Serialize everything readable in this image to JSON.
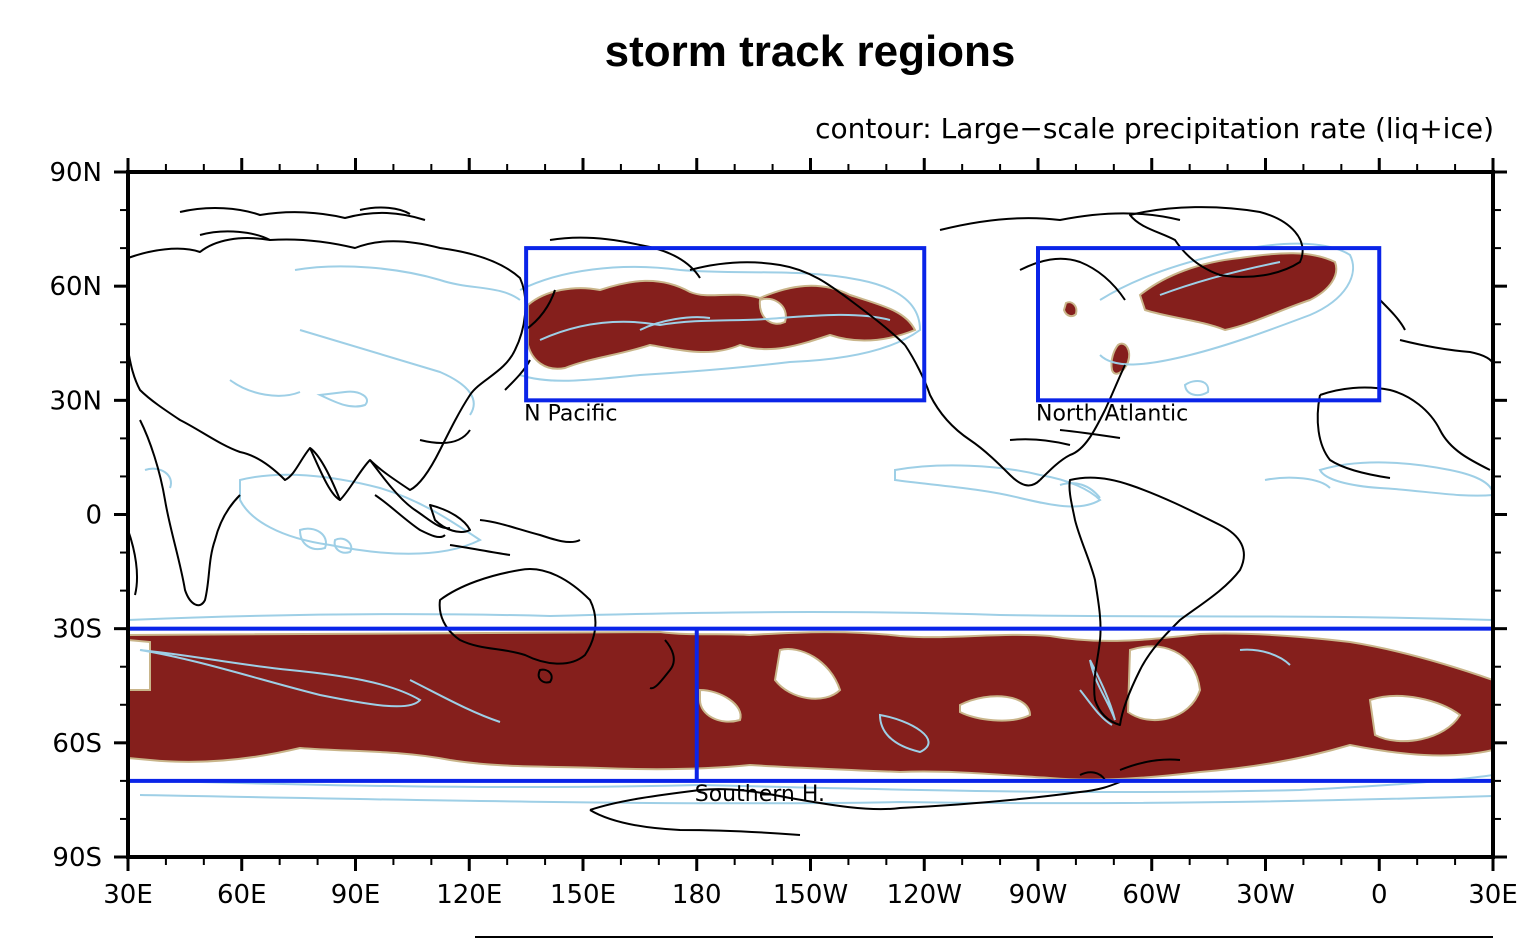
{
  "title": "storm track regions",
  "subtitle": "contour: Large−scale precipitation rate (liq+ice)",
  "colors": {
    "shading": "#851f1c",
    "contours": "#9ecfe6",
    "region_boxes": "#0a24e8",
    "coastlines": "#000000"
  },
  "axes": {
    "x_ticks": [
      {
        "lon": 30,
        "label": "30E"
      },
      {
        "lon": 60,
        "label": "60E"
      },
      {
        "lon": 90,
        "label": "90E"
      },
      {
        "lon": 120,
        "label": "120E"
      },
      {
        "lon": 150,
        "label": "150E"
      },
      {
        "lon": 180,
        "label": "180"
      },
      {
        "lon": 210,
        "label": "150W"
      },
      {
        "lon": 240,
        "label": "120W"
      },
      {
        "lon": 270,
        "label": "90W"
      },
      {
        "lon": 300,
        "label": "60W"
      },
      {
        "lon": 330,
        "label": "30W"
      },
      {
        "lon": 360,
        "label": "0"
      },
      {
        "lon": 390,
        "label": "30E"
      }
    ],
    "y_ticks": [
      {
        "lat": 90,
        "label": "90N"
      },
      {
        "lat": 60,
        "label": "60N"
      },
      {
        "lat": 30,
        "label": "30N"
      },
      {
        "lat": 0,
        "label": "0"
      },
      {
        "lat": -30,
        "label": "30S"
      },
      {
        "lat": -60,
        "label": "60S"
      },
      {
        "lat": -90,
        "label": "90S"
      }
    ],
    "lon_range": [
      30,
      390
    ],
    "lat_range": [
      -90,
      90
    ]
  },
  "regions": [
    {
      "label": "N Pacific",
      "lon": [
        135,
        240
      ],
      "lat": [
        30,
        70
      ]
    },
    {
      "label": "North Atlantic",
      "lon": [
        270,
        360
      ],
      "lat": [
        30,
        70
      ]
    },
    {
      "label": "Southern H.",
      "lon": [
        30,
        390
      ],
      "lat": [
        -70,
        -30
      ],
      "divider_lon": 180
    }
  ]
}
